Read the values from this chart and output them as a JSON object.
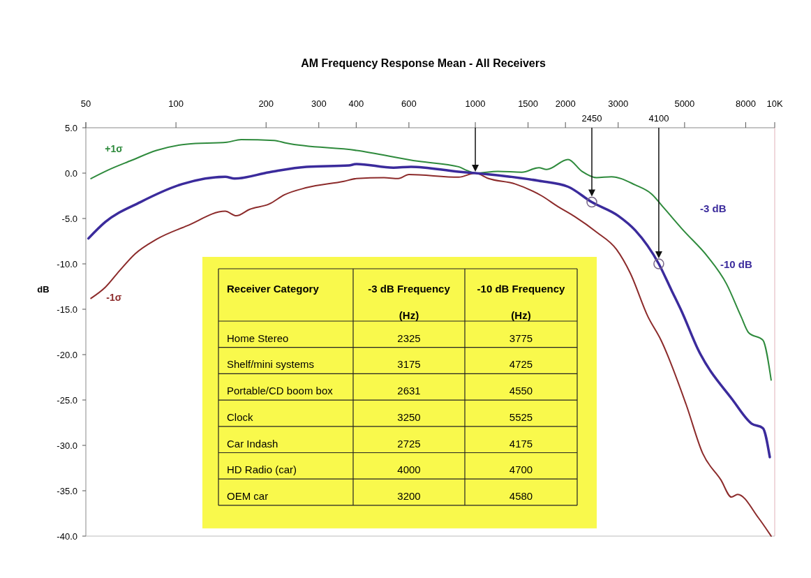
{
  "chart_data": [
    {
      "type": "line",
      "title": "AM Frequency Response Mean - All Receivers",
      "ylabel": "dB",
      "log": "x",
      "grid": false,
      "xlim": [
        50,
        10000
      ],
      "ylim": [
        -40,
        5
      ],
      "xticks": [
        50,
        100,
        200,
        300,
        400,
        600,
        1000,
        1500,
        2000,
        3000,
        5000,
        8000,
        {
          "value": 10000,
          "label": "10K"
        }
      ],
      "yticks": [
        {
          "value": 5,
          "label": "5.0"
        },
        {
          "value": 0,
          "label": "0.0"
        },
        {
          "value": -5,
          "label": "-5.0"
        },
        {
          "value": -10,
          "label": "-10.0"
        },
        {
          "value": -15,
          "label": "-15.0"
        },
        {
          "value": -20,
          "label": "-20.0"
        },
        {
          "value": -25,
          "label": "-25.0"
        },
        {
          "value": -30,
          "label": "-30.0"
        },
        {
          "value": -35,
          "label": "-35.0"
        },
        {
          "value": -40,
          "label": "-40.0"
        }
      ],
      "series": [
        {
          "color": "#3b2b9c",
          "x": [
            51,
            58,
            76,
            105,
            146,
            157,
            205,
            273,
            378,
            401,
            533,
            610,
            879,
            1000,
            1630,
            2040,
            2450,
            3000,
            3420,
            4100,
            4520,
            4900,
            5540,
            7240,
            8370,
            9130,
            9630
          ],
          "values": [
            -7.2,
            -5.4,
            -3.2,
            -1.2,
            -0.4,
            -0.6,
            0.1,
            0.7,
            0.85,
            1.0,
            0.6,
            0.7,
            0.15,
            0,
            -0.85,
            -1.5,
            -3.2,
            -4.7,
            -6.3,
            -10,
            -12.9,
            -15.3,
            -19.4,
            -25,
            -27.6,
            -28.1,
            -31.3
          ]
        },
        {
          "name": "+1σ",
          "color": "#2e8a3c",
          "x": [
            52,
            59,
            71,
            86,
            109,
            148,
            165,
            213,
            234,
            401,
            647,
            879,
            937,
            1000,
            1190,
            1430,
            1630,
            1730,
            2040,
            2270,
            2540,
            2850,
            3420,
            3880,
            4280,
            4950,
            5970,
            6900,
            7720,
            8190,
            9130,
            9730
          ],
          "values": [
            -0.6,
            0.3,
            1.4,
            2.5,
            3.2,
            3.4,
            3.7,
            3.6,
            3.3,
            2.5,
            1.3,
            0.7,
            0.3,
            0,
            0.2,
            0.1,
            0.6,
            0.4,
            1.5,
            0.2,
            -0.5,
            -0.4,
            -1.3,
            -2.3,
            -3.9,
            -6.3,
            -9.2,
            -12.2,
            -15.8,
            -17.6,
            -18.4,
            -22.8
          ]
        },
        {
          "name": "-1σ",
          "color": "#8c2b2b",
          "x": [
            52,
            58,
            65,
            73,
            86,
            109,
            146,
            159,
            176,
            205,
            230,
            273,
            364,
            401,
            495,
            553,
            600,
            879,
            1000,
            1107,
            1360,
            1665,
            1890,
            2150,
            2540,
            2960,
            3290,
            3770,
            4170,
            5060,
            5750,
            6610,
            7170,
            7520,
            8830,
            9730
          ],
          "values": [
            -13.8,
            -12.6,
            -10.7,
            -8.9,
            -7.3,
            -5.8,
            -4.2,
            -4.7,
            -4.0,
            -3.4,
            -2.4,
            -1.6,
            -0.9,
            -0.6,
            -0.5,
            -0.6,
            -0.15,
            -0.45,
            0,
            -0.6,
            -1.2,
            -2.5,
            -3.7,
            -4.8,
            -6.5,
            -8.4,
            -11,
            -15.8,
            -18.4,
            -25.5,
            -30.9,
            -33.8,
            -35.7,
            -35.4,
            -38,
            -40
          ]
        }
      ],
      "ref_lines": [
        {
          "axis": "x",
          "value": 1000
        },
        {
          "axis": "x",
          "value": 2450,
          "label": "2450"
        },
        {
          "axis": "x",
          "value": 4100,
          "label": "4100"
        }
      ],
      "annotations": [
        "-3 dB",
        "-10 dB"
      ]
    },
    {
      "type": "other",
      "annotations": [
        "Receiver Category",
        "-3 dB Frequency (Hz)",
        "-10 dB Frequency (Hz)",
        "Home Stereo",
        "2325",
        "3775",
        "Shelf/mini systems",
        "3175",
        "4725",
        "Portable/CD boom box",
        "2631",
        "4550",
        "Clock",
        "3250",
        "5525",
        "Car Indash",
        "2725",
        "4175",
        "HD Radio (car)",
        "4000",
        "4700",
        "OEM car",
        "3200",
        "4580"
      ]
    }
  ]
}
